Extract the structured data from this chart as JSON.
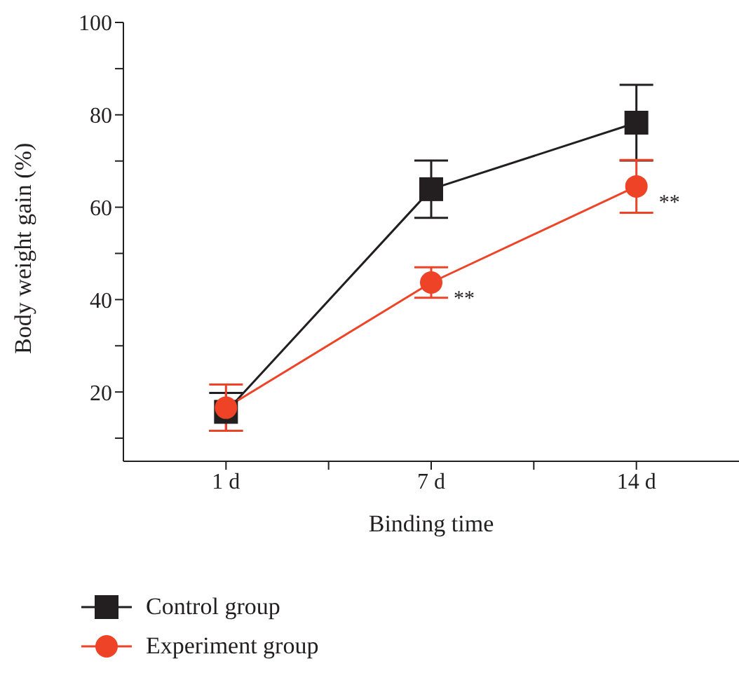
{
  "chart_data": {
    "type": "line",
    "xlabel": "Binding time",
    "ylabel": "Body weight gain (%)",
    "categories": [
      "1 d",
      "7 d",
      "14 d"
    ],
    "series": [
      {
        "name": "Control group",
        "color": "#231f20",
        "marker": "square",
        "values": [
          15.7,
          63.9,
          78.3
        ],
        "errors": [
          4.1,
          6.2,
          8.2
        ]
      },
      {
        "name": "Experiment group",
        "color": "#ee4326",
        "marker": "circle",
        "values": [
          16.6,
          43.7,
          64.5
        ],
        "errors": [
          5,
          3.3,
          5.7
        ]
      }
    ],
    "ylim": [
      5,
      100
    ],
    "yticks": [
      {
        "value": 10,
        "label": null
      },
      20,
      {
        "value": 30,
        "label": null
      },
      40,
      {
        "value": 50,
        "label": null
      },
      60,
      {
        "value": 70,
        "label": null
      },
      80,
      {
        "value": 90,
        "label": null
      },
      100
    ],
    "annotations": [
      {
        "text": "**",
        "x": "7 d",
        "y": 43.7
      },
      {
        "text": "**",
        "x": "14 d",
        "y": 64.5
      }
    ],
    "grid": false,
    "legend": "bottom left",
    "line_style": "solid"
  }
}
